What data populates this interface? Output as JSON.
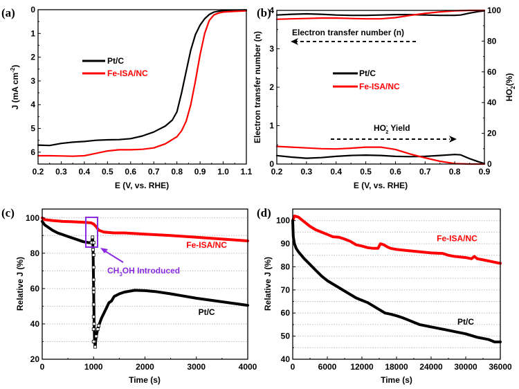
{
  "colors": {
    "pt": "#000000",
    "fe": "#ff0000",
    "highlight": "#8a2be2",
    "grid": "#bbbbbb"
  },
  "chart_data": [
    {
      "id": "a",
      "panel_label": "(a)",
      "type": "line",
      "xlabel": "E (V, vs. RHE)",
      "ylabel": "J (mA cm",
      "ylabel_sup": "-2",
      "ylabel_end": ")",
      "xlim": [
        0.2,
        1.1
      ],
      "ylim": [
        0,
        6.5
      ],
      "y_inverted": true,
      "xticks": [
        "0.2",
        "0.3",
        "0.4",
        "0.5",
        "0.6",
        "0.7",
        "0.8",
        "0.9",
        "1.0",
        "1.1"
      ],
      "xtick_values": [
        0.2,
        0.3,
        0.4,
        0.5,
        0.6,
        0.7,
        0.8,
        0.9,
        1.0,
        1.1
      ],
      "yticks": [
        "0",
        "1",
        "2",
        "3",
        "4",
        "5",
        "6"
      ],
      "ytick_values": [
        0,
        1,
        2,
        3,
        4,
        5,
        6
      ],
      "grid": false,
      "legend": {
        "position": "upper-left",
        "entries": [
          "Pt/C",
          "Fe-ISA/NC"
        ]
      },
      "series": [
        {
          "name": "Pt/C",
          "color_key": "pt",
          "x": [
            0.2,
            0.25,
            0.3,
            0.35,
            0.4,
            0.45,
            0.5,
            0.55,
            0.6,
            0.65,
            0.7,
            0.75,
            0.78,
            0.8,
            0.82,
            0.84,
            0.86,
            0.88,
            0.9,
            0.92,
            0.94,
            0.96,
            0.98,
            1.0,
            1.05,
            1.1
          ],
          "y": [
            5.7,
            5.72,
            5.63,
            5.58,
            5.55,
            5.5,
            5.48,
            5.47,
            5.43,
            5.32,
            5.15,
            4.9,
            4.65,
            4.3,
            3.5,
            2.6,
            1.7,
            1.05,
            0.65,
            0.38,
            0.2,
            0.1,
            0.06,
            0.04,
            0.02,
            0.01
          ]
        },
        {
          "name": "Fe-ISA/NC",
          "color_key": "fe",
          "x": [
            0.2,
            0.25,
            0.3,
            0.35,
            0.4,
            0.45,
            0.5,
            0.55,
            0.6,
            0.65,
            0.7,
            0.75,
            0.8,
            0.82,
            0.84,
            0.86,
            0.88,
            0.9,
            0.92,
            0.94,
            0.96,
            0.98,
            1.0,
            1.05,
            1.1
          ],
          "y": [
            6.15,
            6.15,
            6.16,
            6.17,
            6.15,
            6.05,
            5.95,
            5.9,
            5.9,
            5.88,
            5.82,
            5.65,
            5.35,
            5.1,
            4.7,
            4.0,
            3.0,
            1.9,
            1.0,
            0.45,
            0.22,
            0.14,
            0.1,
            0.07,
            0.05
          ]
        }
      ]
    },
    {
      "id": "b",
      "panel_label": "(b)",
      "type": "line",
      "xlabel": "E (V, vs. RHE)",
      "ylabel": "Electron transfer number (n)",
      "ylabel_right": "HO",
      "ylabel_right_sub": "2",
      "ylabel_right_sup": "-",
      "ylabel_right_end": "(%)",
      "xlim": [
        0.2,
        0.9
      ],
      "ylim": [
        0,
        4
      ],
      "ylim_right": [
        0,
        100
      ],
      "xticks": [
        "0.2",
        "0.3",
        "0.4",
        "0.5",
        "0.6",
        "0.7",
        "0.8",
        "0.9"
      ],
      "xtick_values": [
        0.2,
        0.3,
        0.4,
        0.5,
        0.6,
        0.7,
        0.8,
        0.9
      ],
      "yticks": [
        "0",
        "1",
        "2",
        "3",
        "4"
      ],
      "ytick_values": [
        0,
        1,
        2,
        3,
        4
      ],
      "yticks_right": [
        "0",
        "20",
        "40",
        "60",
        "80",
        "100"
      ],
      "ytick_values_right": [
        0,
        20,
        40,
        60,
        80,
        100
      ],
      "grid": false,
      "legend": {
        "position": "center-left",
        "entries": [
          "Pt/C",
          "Fe-ISA/NC"
        ]
      },
      "annotations": [
        {
          "text": "Electron transfer number (n)",
          "arrow": "left"
        },
        {
          "text": "HO",
          "sub": "2",
          "sup": "-",
          "text_end": " Yield",
          "arrow": "right"
        }
      ],
      "series": [
        {
          "name": "Pt/C n",
          "color_key": "pt",
          "axis": "left",
          "x": [
            0.2,
            0.25,
            0.3,
            0.35,
            0.4,
            0.45,
            0.5,
            0.55,
            0.6,
            0.65,
            0.7,
            0.75,
            0.8,
            0.82,
            0.85,
            0.88,
            0.9
          ],
          "y": [
            3.88,
            3.9,
            3.91,
            3.9,
            3.88,
            3.87,
            3.87,
            3.88,
            3.89,
            3.89,
            3.88,
            3.87,
            3.87,
            3.88,
            3.93,
            3.97,
            3.99
          ]
        },
        {
          "name": "Fe-ISA/NC n",
          "color_key": "fe",
          "axis": "left",
          "x": [
            0.2,
            0.25,
            0.3,
            0.35,
            0.4,
            0.45,
            0.5,
            0.55,
            0.6,
            0.65,
            0.7,
            0.75,
            0.8,
            0.85,
            0.9
          ],
          "y": [
            3.77,
            3.78,
            3.79,
            3.8,
            3.8,
            3.79,
            3.78,
            3.78,
            3.81,
            3.87,
            3.92,
            3.96,
            3.99,
            4.0,
            4.0
          ]
        },
        {
          "name": "Pt/C HO2- yield",
          "color_key": "pt",
          "axis": "right",
          "x": [
            0.2,
            0.25,
            0.3,
            0.35,
            0.4,
            0.45,
            0.5,
            0.55,
            0.6,
            0.65,
            0.7,
            0.75,
            0.8,
            0.82,
            0.85,
            0.88,
            0.9
          ],
          "y": [
            5.5,
            4.5,
            3.8,
            4.2,
            5.0,
            5.6,
            5.8,
            5.6,
            5.0,
            4.8,
            5.0,
            5.6,
            6.2,
            6.0,
            3.5,
            1.5,
            0.3
          ]
        },
        {
          "name": "Fe-ISA/NC HO2- yield",
          "color_key": "fe",
          "axis": "right",
          "x": [
            0.2,
            0.25,
            0.3,
            0.35,
            0.4,
            0.45,
            0.5,
            0.55,
            0.6,
            0.65,
            0.7,
            0.75,
            0.8,
            0.85,
            0.9
          ],
          "y": [
            11.5,
            11.0,
            10.5,
            10.0,
            9.8,
            10.3,
            11.0,
            11.0,
            9.5,
            6.5,
            4.0,
            1.8,
            0.3,
            0.0,
            0.0
          ]
        }
      ]
    },
    {
      "id": "c",
      "panel_label": "(c)",
      "type": "line",
      "xlabel": "Time (s)",
      "ylabel": "Relative J (%)",
      "xlim": [
        0,
        4000
      ],
      "ylim": [
        20,
        105
      ],
      "xticks": [
        "0",
        "1000",
        "2000",
        "3000",
        "4000"
      ],
      "xtick_values": [
        0,
        1000,
        2000,
        3000,
        4000
      ],
      "yticks": [
        "20",
        "40",
        "60",
        "80",
        "100"
      ],
      "ytick_values": [
        20,
        40,
        60,
        80,
        100
      ],
      "grid": true,
      "gridlines": [
        30,
        40,
        50,
        60,
        70,
        80,
        90,
        100
      ],
      "labels": [
        {
          "text": "Fe-ISA/NC",
          "color_key": "fe",
          "x": 3200,
          "y": 83
        },
        {
          "text": "Pt/C",
          "color_key": "pt",
          "x": 3200,
          "y": 45
        }
      ],
      "annotations": [
        {
          "text": "CH",
          "sub": "3",
          "text_end": "OH Introduced",
          "color_key": "highlight",
          "box_x": [
            860,
            1080
          ],
          "box_y": [
            84,
            100
          ],
          "event_time": 1000
        }
      ],
      "series": [
        {
          "name": "Fe-ISA/NC",
          "color_key": "fe",
          "x": [
            0,
            50,
            200,
            400,
            600,
            800,
            950,
            1000,
            1050,
            1100,
            1200,
            1400,
            1600,
            2000,
            2500,
            3000,
            3500,
            4000
          ],
          "y": [
            100,
            99,
            98.5,
            98,
            97.8,
            97.5,
            97.2,
            96.5,
            95,
            93,
            92,
            91.5,
            91.5,
            90.8,
            90,
            89,
            88,
            87
          ]
        },
        {
          "name": "Pt/C",
          "color_key": "pt",
          "x": [
            0,
            50,
            100,
            200,
            300,
            400,
            500,
            600,
            700,
            800,
            900,
            960,
            980,
            990,
            1000,
            1010,
            1020,
            1030,
            1050,
            1080,
            1100,
            1150,
            1200,
            1250,
            1300,
            1350,
            1400,
            1500,
            1600,
            1800,
            2000,
            2200,
            2500,
            3000,
            3500,
            4000
          ],
          "y": [
            98,
            96,
            95,
            93,
            91.5,
            90.5,
            89.5,
            88.5,
            87.5,
            86.5,
            86,
            86,
            89,
            82,
            60,
            40,
            30,
            27,
            33,
            37,
            39,
            43,
            46,
            49,
            52,
            53,
            55.5,
            57,
            58,
            59,
            58.8,
            58.3,
            57,
            54.5,
            52.5,
            50.5
          ]
        }
      ]
    },
    {
      "id": "d",
      "panel_label": "(d)",
      "type": "line",
      "xlabel": "Time (s)",
      "ylabel": "Relative J (%)",
      "xlim": [
        0,
        36000
      ],
      "ylim": [
        40,
        105
      ],
      "xticks": [
        "0",
        "6000",
        "12000",
        "18000",
        "24000",
        "30000",
        "36000"
      ],
      "xtick_values": [
        0,
        6000,
        12000,
        18000,
        24000,
        30000,
        36000
      ],
      "yticks": [
        "40",
        "50",
        "60",
        "70",
        "80",
        "90",
        "100"
      ],
      "ytick_values": [
        40,
        50,
        60,
        70,
        80,
        90,
        100
      ],
      "grid": true,
      "gridlines": [
        45,
        50,
        55,
        60,
        65,
        70,
        75,
        80,
        85,
        90,
        95,
        100
      ],
      "labels": [
        {
          "text": "Fe-ISA/NC",
          "color_key": "fe",
          "x": 28500,
          "y": 91
        },
        {
          "text": "Pt/C",
          "color_key": "pt",
          "x": 30000,
          "y": 55
        }
      ],
      "series": [
        {
          "name": "Fe-ISA/NC",
          "color_key": "fe",
          "x": [
            0,
            300,
            1000,
            2000,
            3000,
            4000,
            5000,
            6000,
            7000,
            8000,
            9000,
            10000,
            11000,
            12000,
            13000,
            14000,
            14800,
            15200,
            15800,
            16500,
            17000,
            18000,
            20000,
            22000,
            24000,
            26000,
            27000,
            28000,
            30000,
            31000,
            31500,
            32000,
            33000,
            34000,
            35000,
            36000
          ],
          "y": [
            100,
            102,
            101.5,
            99.5,
            97.5,
            96,
            95,
            94,
            93,
            92.8,
            92,
            91,
            89.5,
            89,
            88.3,
            88,
            88,
            90,
            89.5,
            88.5,
            88,
            87.5,
            87,
            86.5,
            86,
            85.8,
            85,
            84.5,
            84,
            83.5,
            84.5,
            83.5,
            83,
            82.5,
            82,
            81.5
          ]
        },
        {
          "name": "Pt/C",
          "color_key": "pt",
          "x": [
            0,
            100,
            300,
            600,
            1000,
            1500,
            2000,
            3000,
            4000,
            5000,
            6000,
            7000,
            8000,
            9000,
            10000,
            11000,
            12000,
            13000,
            14000,
            15000,
            16000,
            17000,
            18000,
            19000,
            20000,
            21000,
            22000,
            24000,
            26000,
            28000,
            30000,
            32000,
            34000,
            35000,
            36000
          ],
          "y": [
            100,
            93,
            90,
            88,
            86.5,
            85,
            83.5,
            81,
            78.5,
            76,
            74,
            72.5,
            71,
            69.5,
            68,
            66.5,
            65.5,
            64.5,
            63,
            61.5,
            60,
            59.5,
            58.8,
            58,
            57,
            56,
            55,
            54,
            53,
            52,
            51,
            49.5,
            48.5,
            47.5,
            47.5
          ]
        }
      ]
    }
  ]
}
